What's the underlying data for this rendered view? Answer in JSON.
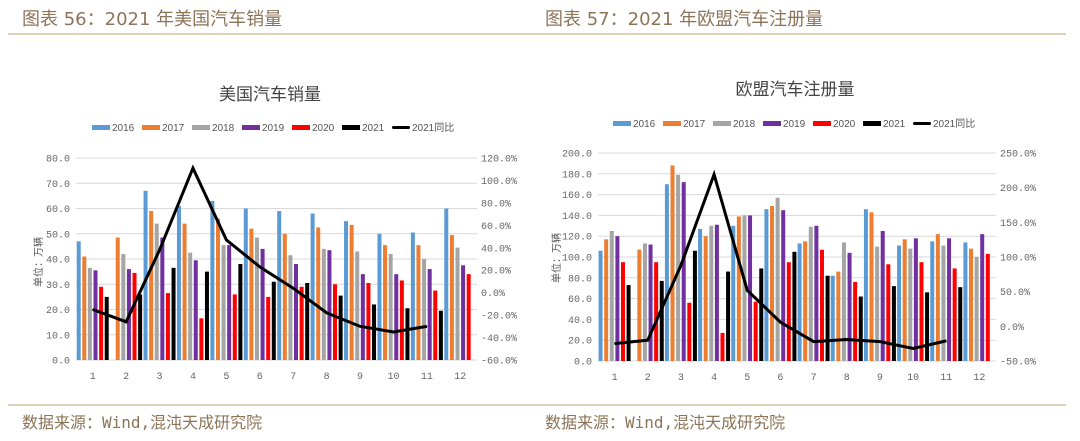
{
  "header": {
    "left_title": "图表 56：2021 年美国汽车销量",
    "right_title": "图表 57：2021 年欧盟汽车注册量"
  },
  "footer": {
    "left_source": "数据来源：Wind,混沌天成研究院",
    "right_source": "数据来源：Wind,混沌天成研究院"
  },
  "colors": {
    "rule": "#c9b38e",
    "2016": "#5b9bd5",
    "2017": "#ed7d31",
    "2018": "#a5a5a5",
    "2019": "#7030a0",
    "2020": "#ff0000",
    "2021": "#000000",
    "yoy": "#000000"
  },
  "chart_data": [
    {
      "type": "bar",
      "title": "美国汽车销量",
      "ylabel": "单位：万辆",
      "categories": [
        "1",
        "2",
        "3",
        "4",
        "5",
        "6",
        "7",
        "8",
        "9",
        "10",
        "11",
        "12"
      ],
      "ylim": [
        0,
        80
      ],
      "yticks": [
        "0.0",
        "10.0",
        "20.0",
        "30.0",
        "40.0",
        "50.0",
        "60.0",
        "70.0",
        "80.0"
      ],
      "y2lim": [
        -60,
        120
      ],
      "y2ticks": [
        "-60.0%",
        "-40.0%",
        "-20.0%",
        "0.0%",
        "20.0%",
        "40.0%",
        "60.0%",
        "80.0%",
        "100.0%",
        "120.0%"
      ],
      "grid": true,
      "legend": "top",
      "series": [
        {
          "name": "2016",
          "type": "bar",
          "values": [
            47,
            null,
            67,
            61,
            63,
            60,
            59,
            58,
            55,
            50,
            50.5,
            60
          ]
        },
        {
          "name": "2017",
          "type": "bar",
          "values": [
            41,
            48.5,
            59,
            54,
            56,
            52,
            50,
            52.5,
            53.5,
            45.5,
            45.5,
            49.5
          ]
        },
        {
          "name": "2018",
          "type": "bar",
          "values": [
            36.5,
            42,
            54,
            42.5,
            45.5,
            48.5,
            41.5,
            44,
            43,
            42,
            40,
            44.5
          ]
        },
        {
          "name": "2019",
          "type": "bar",
          "values": [
            35.5,
            36,
            48.5,
            39.5,
            45.5,
            44,
            38,
            43.5,
            34,
            34,
            36,
            37.5
          ]
        },
        {
          "name": "2020",
          "type": "bar",
          "values": [
            29,
            34.5,
            26.5,
            16.5,
            26,
            25,
            29,
            30,
            30.5,
            31.5,
            27.5,
            34
          ]
        },
        {
          "name": "2021",
          "type": "bar",
          "values": [
            25,
            26,
            36.5,
            35,
            38,
            31,
            30.5,
            25.5,
            22,
            20.5,
            19.5,
            null
          ]
        },
        {
          "name": "2021同比",
          "type": "line",
          "axis": "secondary",
          "unit": "%",
          "values": [
            -15,
            -26,
            38,
            111,
            47,
            23,
            4,
            -18,
            -30,
            -35,
            -30,
            null
          ]
        }
      ]
    },
    {
      "type": "bar",
      "title": "欧盟汽车注册量",
      "ylabel": "单位：万辆",
      "categories": [
        "1",
        "2",
        "3",
        "4",
        "5",
        "6",
        "7",
        "8",
        "9",
        "10",
        "11",
        "12"
      ],
      "ylim": [
        0,
        200
      ],
      "yticks": [
        "0.0",
        "20.0",
        "40.0",
        "60.0",
        "80.0",
        "100.0",
        "120.0",
        "140.0",
        "160.0",
        "180.0",
        "200.0"
      ],
      "y2lim": [
        -50,
        250
      ],
      "y2ticks": [
        "-50.0%",
        "0.0%",
        "50.0%",
        "100.0%",
        "150.0%",
        "200.0%",
        "250.0%"
      ],
      "grid": true,
      "legend": "top",
      "series": [
        {
          "name": "2016",
          "type": "bar",
          "values": [
            106,
            null,
            170,
            127,
            130,
            146,
            113,
            82,
            146,
            111,
            115,
            114
          ]
        },
        {
          "name": "2017",
          "type": "bar",
          "values": [
            117,
            107,
            188,
            120,
            139,
            149,
            115,
            86,
            143,
            117,
            122,
            108
          ]
        },
        {
          "name": "2018",
          "type": "bar",
          "values": [
            125,
            113,
            179,
            130,
            140,
            157,
            129,
            114,
            110,
            108,
            111,
            100
          ]
        },
        {
          "name": "2019",
          "type": "bar",
          "values": [
            120,
            112,
            172,
            131,
            140,
            145,
            130,
            104,
            125,
            118,
            118,
            122
          ]
        },
        {
          "name": "2020",
          "type": "bar",
          "values": [
            95,
            95,
            56,
            27,
            57,
            95,
            107,
            76,
            93,
            95,
            89,
            103
          ]
        },
        {
          "name": "2021",
          "type": "bar",
          "values": [
            73,
            77,
            106,
            86,
            89,
            105,
            82,
            62,
            72,
            66,
            71,
            null
          ]
        },
        {
          "name": "2021同比",
          "type": "line",
          "axis": "secondary",
          "unit": "%",
          "values": [
            -25,
            -20,
            88,
            219,
            52,
            6,
            -22,
            -19,
            -22,
            -32,
            -21,
            null
          ]
        }
      ]
    }
  ]
}
